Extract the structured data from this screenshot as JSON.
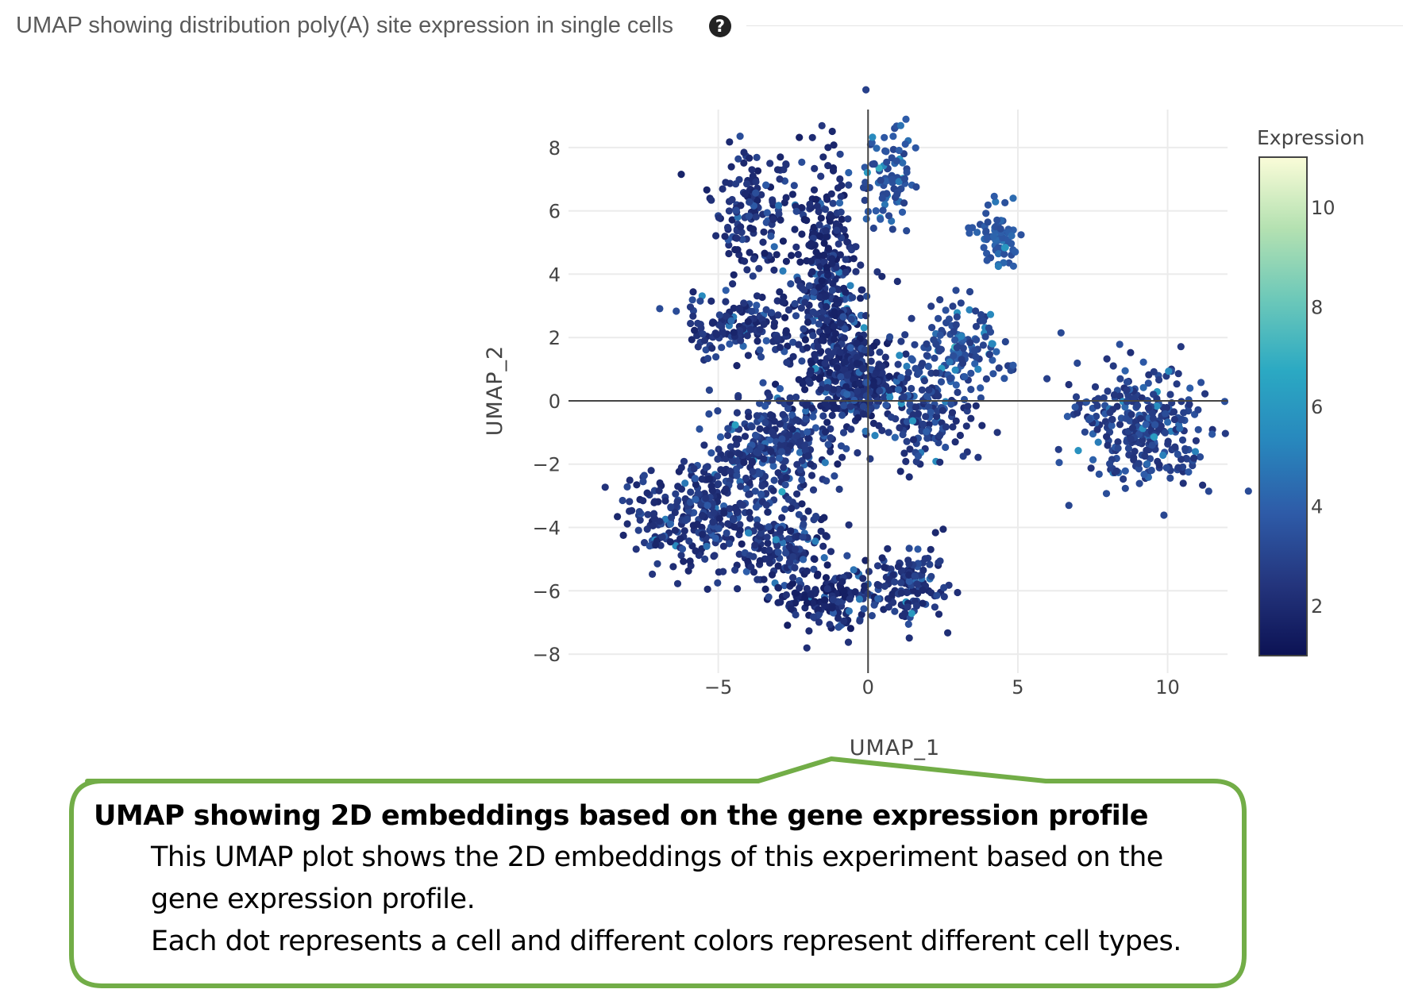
{
  "panel": {
    "title": "UMAP showing distribution poly(A) site expression in single cells",
    "help_icon": "question-circle-icon"
  },
  "chart_data": {
    "type": "scatter",
    "xlabel": "UMAP_1",
    "ylabel": "UMAP_2",
    "xlim": [
      -10,
      12.0
    ],
    "ylim": [
      -8.6,
      9.2
    ],
    "xticks": [
      -5,
      0,
      5,
      10
    ],
    "yticks": [
      -8,
      -6,
      -4,
      -2,
      0,
      2,
      4,
      6,
      8
    ],
    "xtick_labels": [
      "−5",
      "0",
      "5",
      "10"
    ],
    "ytick_labels": [
      "−8",
      "−6",
      "−4",
      "−2",
      "0",
      "2",
      "4",
      "6",
      "8"
    ],
    "grid": true,
    "zero_lines": true,
    "colorbar": {
      "title": "Expression",
      "range": [
        1,
        11
      ],
      "ticks": [
        2,
        4,
        6,
        8,
        10
      ],
      "colorscale": [
        "#0c1254",
        "#24357d",
        "#2e5ba8",
        "#2887bd",
        "#2ba9c3",
        "#6cc8b9",
        "#b4e1b1",
        "#fafcd8"
      ]
    },
    "clusters": [
      {
        "cx": -3.8,
        "cy": 6.0,
        "sx": 0.7,
        "sy": 1.0,
        "n": 150,
        "mean": 1.6
      },
      {
        "cx": -1.5,
        "cy": 4.5,
        "sx": 0.6,
        "sy": 1.5,
        "n": 240,
        "mean": 1.5
      },
      {
        "cx": -1.0,
        "cy": 1.5,
        "sx": 0.8,
        "sy": 1.2,
        "n": 260,
        "mean": 1.5
      },
      {
        "cx": -0.2,
        "cy": 0.5,
        "sx": 0.8,
        "sy": 0.6,
        "n": 200,
        "mean": 1.6
      },
      {
        "cx": 0.6,
        "cy": 7.0,
        "sx": 0.5,
        "sy": 0.9,
        "n": 90,
        "mean": 2.8
      },
      {
        "cx": 4.4,
        "cy": 5.2,
        "sx": 0.4,
        "sy": 0.5,
        "n": 70,
        "mean": 3.2
      },
      {
        "cx": -4.3,
        "cy": 2.4,
        "sx": 1.0,
        "sy": 0.6,
        "n": 140,
        "mean": 1.7
      },
      {
        "cx": 3.0,
        "cy": 1.5,
        "sx": 0.9,
        "sy": 0.8,
        "n": 150,
        "mean": 2.6
      },
      {
        "cx": 2.0,
        "cy": -0.6,
        "sx": 0.7,
        "sy": 0.7,
        "n": 120,
        "mean": 2.0
      },
      {
        "cx": 9.2,
        "cy": -0.8,
        "sx": 1.1,
        "sy": 0.9,
        "n": 310,
        "mean": 2.2
      },
      {
        "cx": -3.2,
        "cy": -1.5,
        "sx": 1.0,
        "sy": 0.8,
        "n": 300,
        "mean": 1.9
      },
      {
        "cx": -5.6,
        "cy": -3.6,
        "sx": 1.2,
        "sy": 0.8,
        "n": 300,
        "mean": 1.8
      },
      {
        "cx": -2.7,
        "cy": -4.7,
        "sx": 0.7,
        "sy": 0.7,
        "n": 140,
        "mean": 1.6
      },
      {
        "cx": -1.2,
        "cy": -6.3,
        "sx": 0.8,
        "sy": 0.5,
        "n": 160,
        "mean": 1.4
      },
      {
        "cx": 1.3,
        "cy": -5.8,
        "sx": 0.6,
        "sy": 0.6,
        "n": 130,
        "mean": 1.8
      }
    ]
  },
  "callout": {
    "heading": "UMAP showing 2D embeddings based on the gene expression profile",
    "lines": [
      "This UMAP plot shows the 2D embeddings of this experiment based on the",
      "gene expression profile.",
      "Each dot represents a cell and different colors represent different cell types."
    ]
  }
}
